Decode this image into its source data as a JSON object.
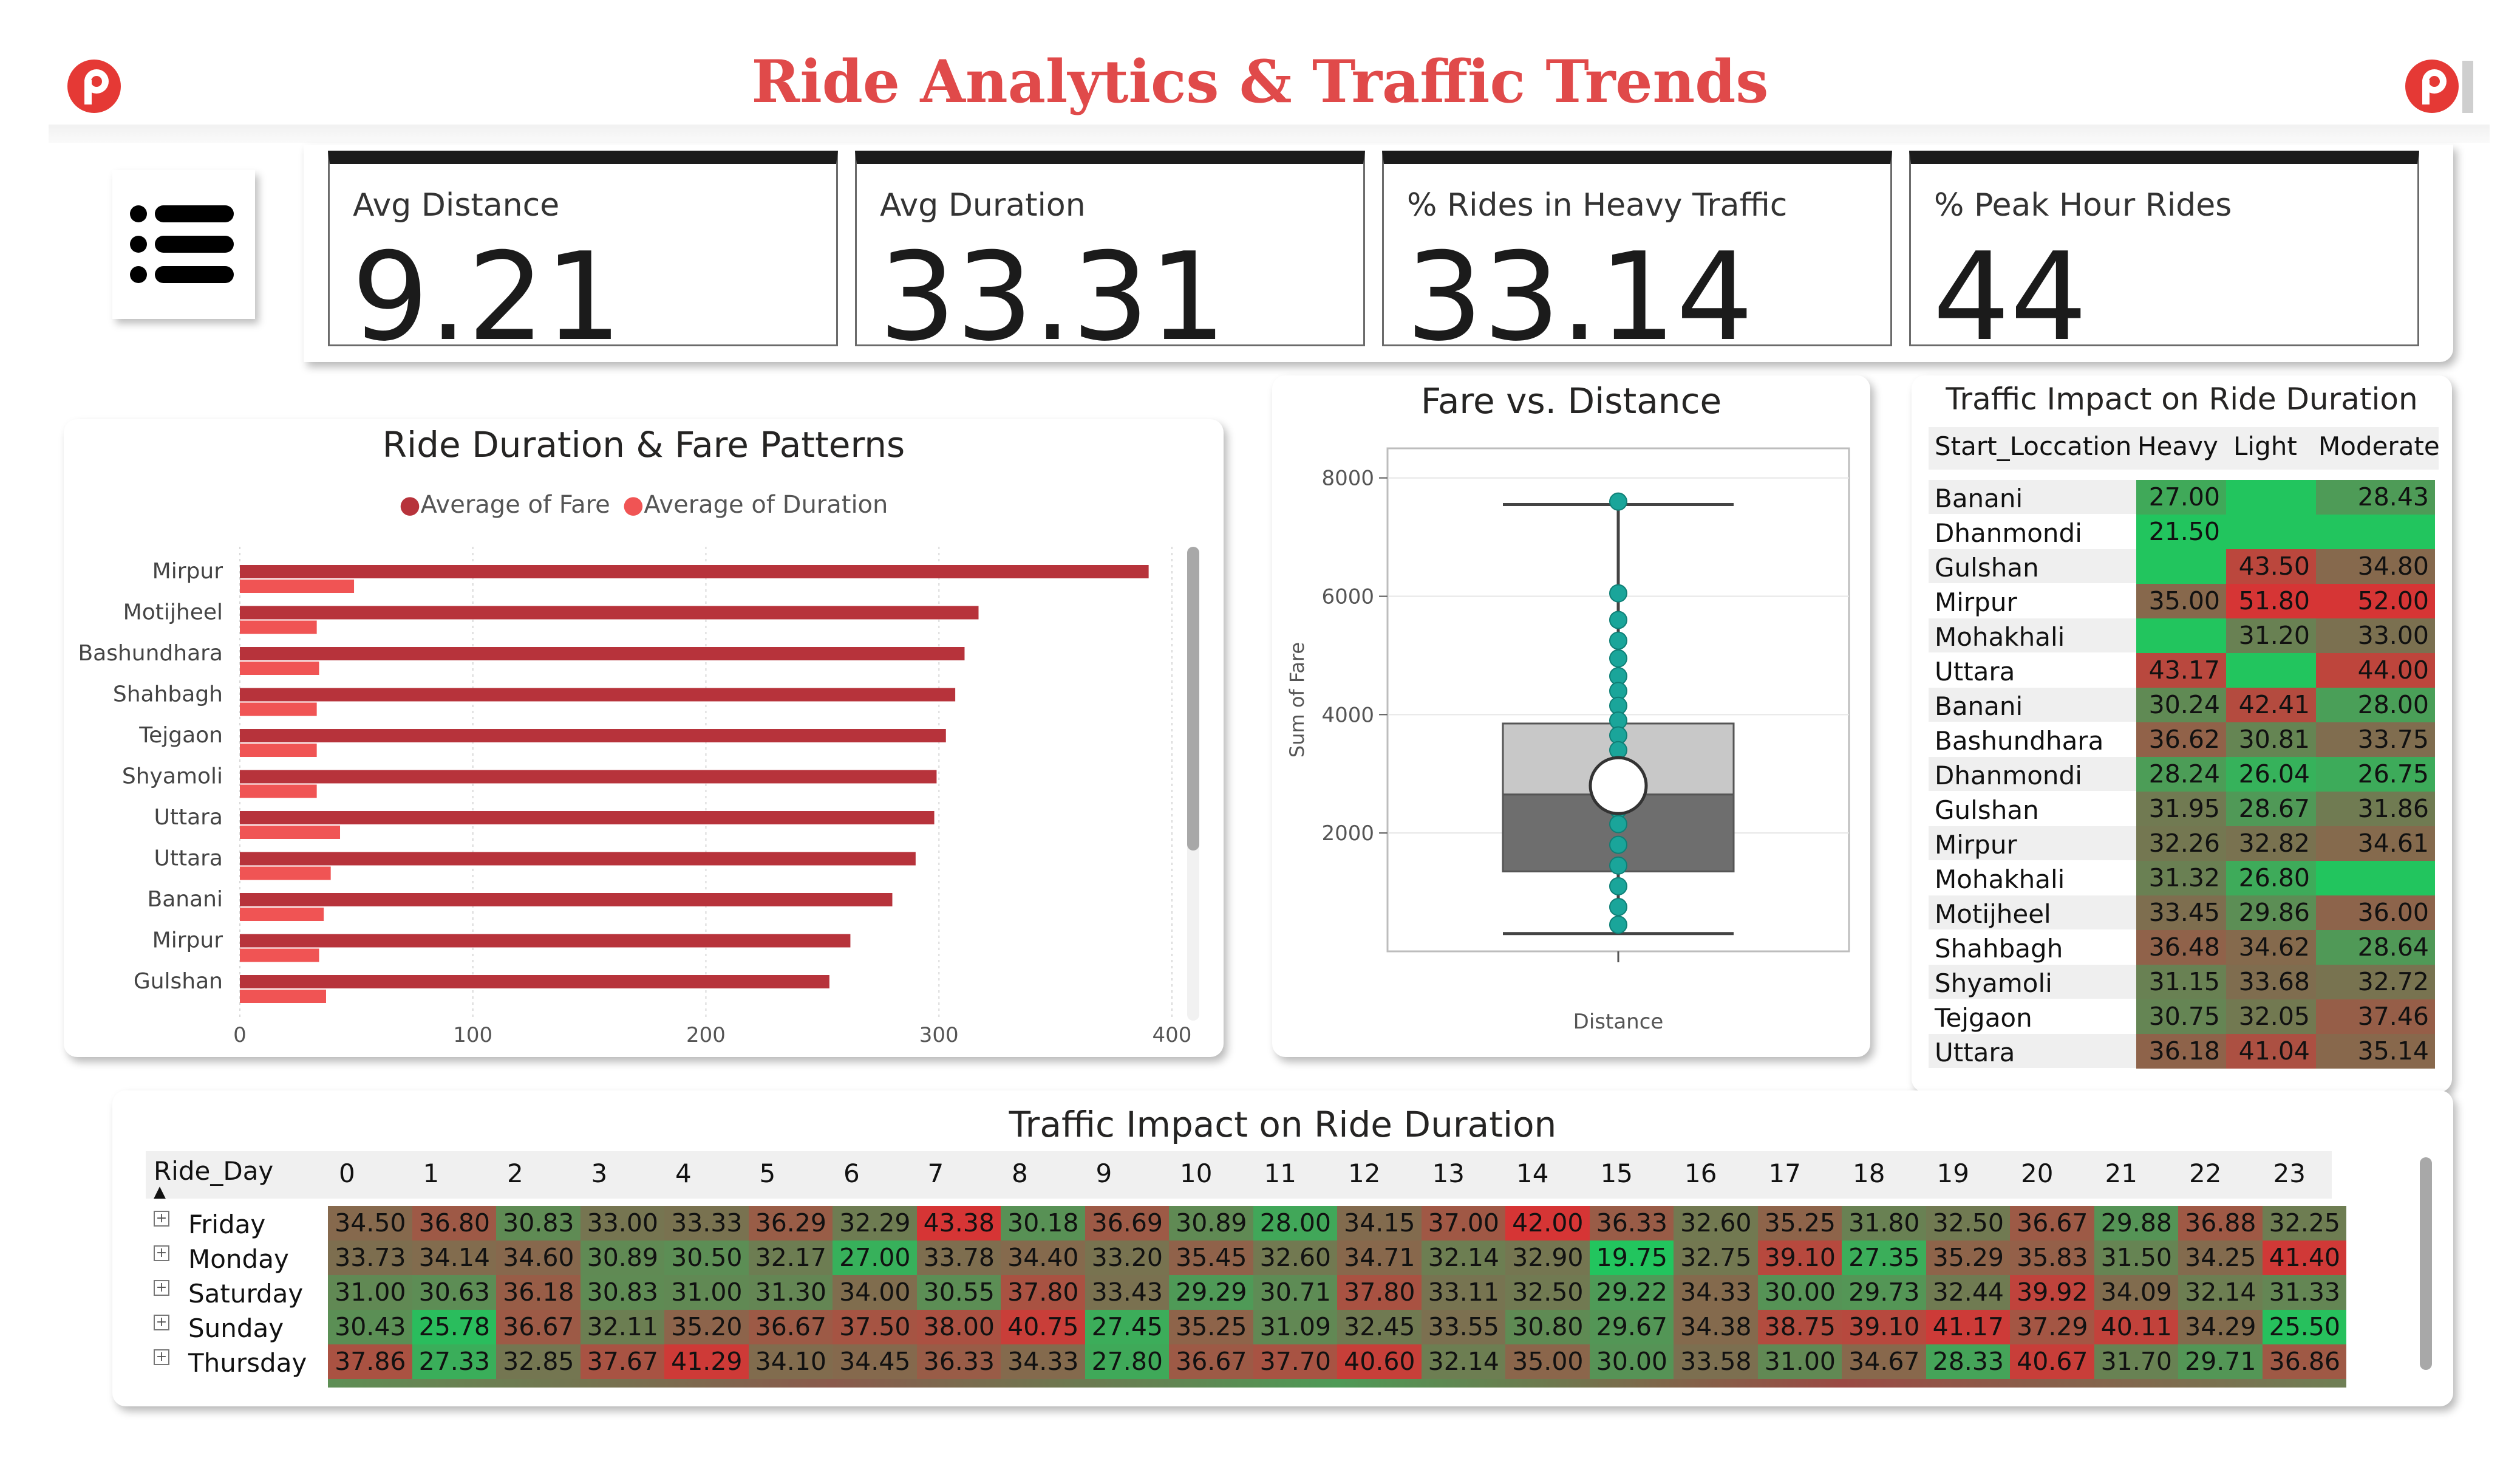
{
  "header": {
    "title": "Ride Analytics & Traffic Trends",
    "colors": {
      "title": "#e04a4a",
      "logo": "#e53935"
    },
    "logo_icon": "p-logo-icon",
    "menu_icon": "list-menu-icon"
  },
  "kpis": [
    {
      "label": "Avg Distance",
      "value": "9.21"
    },
    {
      "label": "Avg Duration",
      "value": "33.31"
    },
    {
      "label": "% Rides in Heavy Traffic",
      "value": "33.14"
    },
    {
      "label": "% Peak Hour Rides",
      "value": "44"
    }
  ],
  "bar_chart": {
    "title": "Ride Duration & Fare Patterns",
    "legend": [
      "Average of Fare",
      "Average of Duration"
    ],
    "colors": {
      "fare": "#b7333b",
      "duration": "#f05454"
    },
    "categories": [
      "Mirpur",
      "Motijheel",
      "Bashundhara",
      "Shahbagh",
      "Tejgaon",
      "Shyamoli",
      "Uttara",
      "Uttara",
      "Banani",
      "Mirpur",
      "Gulshan"
    ],
    "ticks": [
      "0",
      "100",
      "200",
      "300",
      "400"
    ]
  },
  "box_chart": {
    "title": "Fare vs. Distance",
    "xlabel": "Distance",
    "ylabel": "Sum of Fare",
    "ticks": [
      "8000",
      "6000",
      "4000",
      "2000"
    ]
  },
  "traffic_table": {
    "title": "Traffic Impact on Ride Duration",
    "headers": [
      "Start_Loccation",
      "Heavy",
      "Light",
      "Moderate"
    ],
    "rows": [
      {
        "loc": "Banani",
        "heavy": "27.00",
        "light": "",
        "moderate": "28.43"
      },
      {
        "loc": "Dhanmondi",
        "heavy": "21.50",
        "light": "",
        "moderate": ""
      },
      {
        "loc": "Gulshan",
        "heavy": "",
        "light": "43.50",
        "moderate": "34.80"
      },
      {
        "loc": "Mirpur",
        "heavy": "35.00",
        "light": "51.80",
        "moderate": "52.00"
      },
      {
        "loc": "Mohakhali",
        "heavy": "",
        "light": "31.20",
        "moderate": "33.00"
      },
      {
        "loc": "Uttara",
        "heavy": "43.17",
        "light": "",
        "moderate": "44.00"
      },
      {
        "loc": "Banani",
        "heavy": "30.24",
        "light": "42.41",
        "moderate": "28.00"
      },
      {
        "loc": "Bashundhara",
        "heavy": "36.62",
        "light": "30.81",
        "moderate": "33.75"
      },
      {
        "loc": "Dhanmondi",
        "heavy": "28.24",
        "light": "26.04",
        "moderate": "26.75"
      },
      {
        "loc": "Gulshan",
        "heavy": "31.95",
        "light": "28.67",
        "moderate": "31.86"
      },
      {
        "loc": "Mirpur",
        "heavy": "32.26",
        "light": "32.82",
        "moderate": "34.61"
      },
      {
        "loc": "Mohakhali",
        "heavy": "31.32",
        "light": "26.80",
        "moderate": ""
      },
      {
        "loc": "Motijheel",
        "heavy": "33.45",
        "light": "29.86",
        "moderate": "36.00"
      },
      {
        "loc": "Shahbagh",
        "heavy": "36.48",
        "light": "34.62",
        "moderate": "28.64"
      },
      {
        "loc": "Shyamoli",
        "heavy": "31.15",
        "light": "33.68",
        "moderate": "32.72"
      },
      {
        "loc": "Tejgaon",
        "heavy": "30.75",
        "light": "32.05",
        "moderate": "37.46"
      },
      {
        "loc": "Uttara",
        "heavy": "36.18",
        "light": "41.04",
        "moderate": "35.14"
      }
    ]
  },
  "hour_matrix": {
    "title": "Traffic Impact on Ride Duration",
    "row_header": "Ride_Day",
    "expand_icon": "plus-box-icon",
    "hours": [
      "0",
      "1",
      "2",
      "3",
      "4",
      "5",
      "6",
      "7",
      "8",
      "9",
      "10",
      "11",
      "12",
      "13",
      "14",
      "15",
      "16",
      "17",
      "18",
      "19",
      "20",
      "21",
      "22",
      "23"
    ],
    "rows": [
      {
        "day": "Friday",
        "values": [
          "34.50",
          "36.80",
          "30.83",
          "33.00",
          "33.33",
          "36.29",
          "32.29",
          "43.38",
          "30.18",
          "36.69",
          "30.89",
          "28.00",
          "34.15",
          "37.00",
          "42.00",
          "36.33",
          "32.60",
          "35.25",
          "31.80",
          "32.50",
          "36.67",
          "29.88",
          "36.88",
          "32.25"
        ]
      },
      {
        "day": "Monday",
        "values": [
          "33.73",
          "34.14",
          "34.60",
          "30.89",
          "30.50",
          "32.17",
          "27.00",
          "33.78",
          "34.40",
          "33.20",
          "35.45",
          "32.60",
          "34.71",
          "32.14",
          "32.90",
          "19.75",
          "32.75",
          "39.10",
          "27.35",
          "35.29",
          "35.83",
          "31.50",
          "34.25",
          "41.40"
        ]
      },
      {
        "day": "Saturday",
        "values": [
          "31.00",
          "30.63",
          "36.18",
          "30.83",
          "31.00",
          "31.30",
          "34.00",
          "30.55",
          "37.80",
          "33.43",
          "29.29",
          "30.71",
          "37.80",
          "33.11",
          "32.50",
          "29.22",
          "34.33",
          "30.00",
          "29.73",
          "32.44",
          "39.92",
          "34.09",
          "32.14",
          "31.33"
        ]
      },
      {
        "day": "Sunday",
        "values": [
          "30.43",
          "25.78",
          "36.67",
          "32.11",
          "35.20",
          "36.67",
          "37.50",
          "38.00",
          "40.75",
          "27.45",
          "35.25",
          "31.09",
          "32.45",
          "33.55",
          "30.80",
          "29.67",
          "34.38",
          "38.75",
          "39.10",
          "41.17",
          "37.29",
          "40.11",
          "34.29",
          "25.50"
        ]
      },
      {
        "day": "Thursday",
        "values": [
          "37.86",
          "27.33",
          "32.85",
          "37.67",
          "41.29",
          "34.10",
          "34.45",
          "36.33",
          "34.33",
          "27.80",
          "36.67",
          "37.70",
          "40.60",
          "32.14",
          "35.00",
          "30.00",
          "33.58",
          "31.00",
          "34.67",
          "28.33",
          "40.67",
          "31.70",
          "29.71",
          "36.86"
        ]
      }
    ]
  },
  "chart_data": [
    {
      "type": "bar",
      "title": "Ride Duration & Fare Patterns",
      "categories": [
        "Mirpur",
        "Motijheel",
        "Bashundhara",
        "Shahbagh",
        "Tejgaon",
        "Shyamoli",
        "Uttara",
        "Uttara",
        "Banani",
        "Mirpur",
        "Gulshan"
      ],
      "series": [
        {
          "name": "Average of Fare",
          "values": [
            390,
            317,
            311,
            307,
            303,
            299,
            298,
            290,
            280,
            262,
            253
          ]
        },
        {
          "name": "Average of Duration",
          "values": [
            49,
            33,
            34,
            33,
            33,
            33,
            43,
            39,
            36,
            34,
            37
          ]
        }
      ],
      "xlim": [
        0,
        400
      ],
      "orientation": "horizontal",
      "legend": "top-center",
      "grid": true
    },
    {
      "type": "scatter",
      "title": "Fare vs. Distance",
      "xlabel": "Distance",
      "ylabel": "Sum of Fare",
      "ylim": [
        0,
        8500
      ],
      "box": {
        "min": 300,
        "q1": 1350,
        "median": 2650,
        "q3": 3850,
        "max": 7550,
        "mean": 2800
      },
      "points": [
        7600,
        6050,
        5600,
        5250,
        4950,
        4650,
        4400,
        4150,
        3900,
        3650,
        3400,
        3150,
        2900,
        2650,
        2400,
        2150,
        1800,
        1450,
        1100,
        750,
        450
      ]
    }
  ]
}
